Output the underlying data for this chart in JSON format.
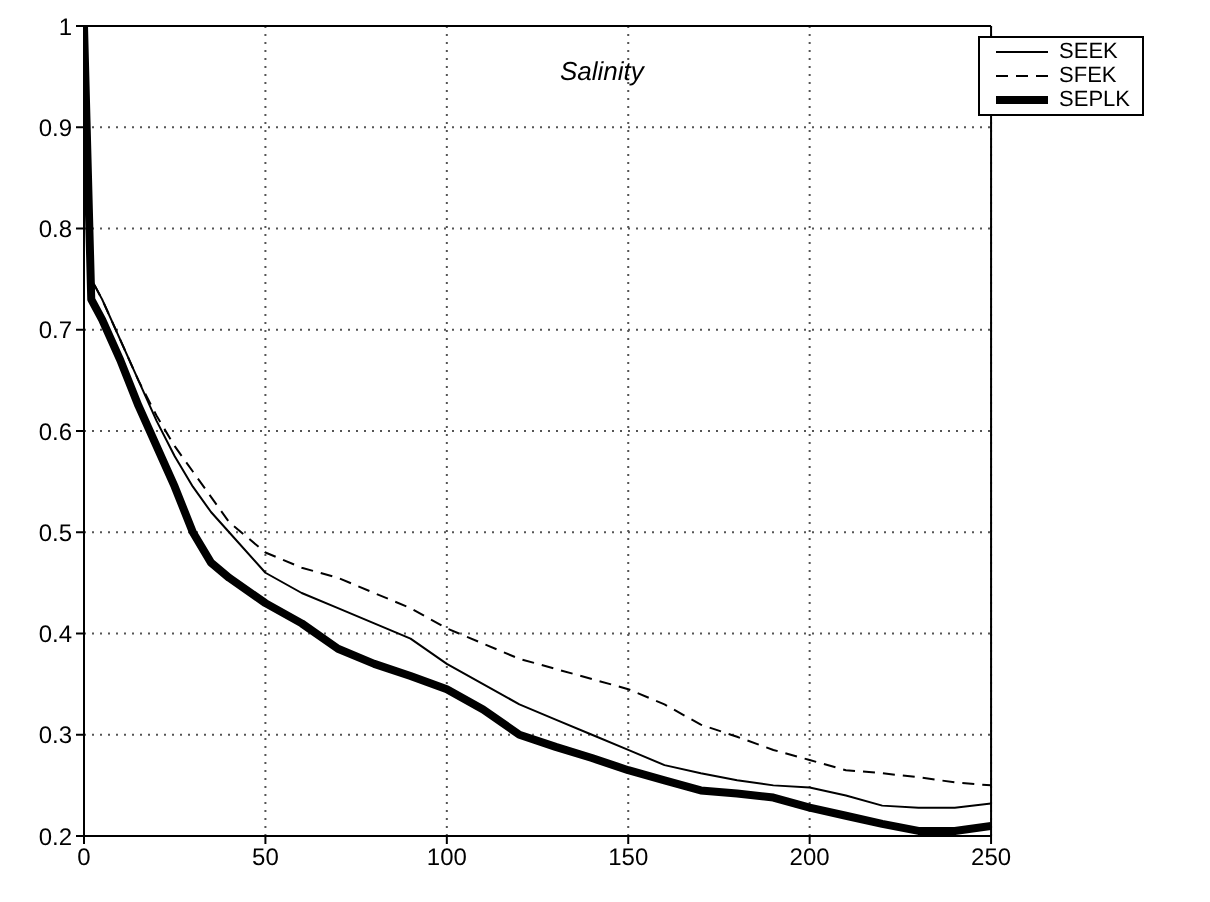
{
  "chart_data": {
    "type": "line",
    "title": "Salinity",
    "x": [
      0,
      2,
      5,
      10,
      15,
      20,
      25,
      30,
      35,
      40,
      50,
      60,
      70,
      80,
      90,
      100,
      110,
      120,
      130,
      140,
      150,
      160,
      170,
      180,
      190,
      200,
      210,
      220,
      230,
      240,
      250
    ],
    "series": [
      {
        "name": "SEEK",
        "color": "#000000",
        "line_style": "solid",
        "values": [
          1.0,
          0.75,
          0.73,
          0.69,
          0.65,
          0.61,
          0.575,
          0.545,
          0.52,
          0.5,
          0.46,
          0.44,
          0.425,
          0.41,
          0.395,
          0.37,
          0.35,
          0.33,
          0.315,
          0.3,
          0.285,
          0.27,
          0.262,
          0.255,
          0.25,
          0.248,
          0.24,
          0.23,
          0.228,
          0.228,
          0.232
        ]
      },
      {
        "name": "SFEK",
        "color": "#000000",
        "line_style": "dashed",
        "values": [
          1.0,
          0.75,
          0.73,
          0.69,
          0.65,
          0.615,
          0.585,
          0.56,
          0.535,
          0.51,
          0.48,
          0.465,
          0.455,
          0.44,
          0.425,
          0.405,
          0.39,
          0.375,
          0.365,
          0.355,
          0.345,
          0.33,
          0.31,
          0.298,
          0.285,
          0.275,
          0.265,
          0.262,
          0.258,
          0.253,
          0.25
        ]
      },
      {
        "name": "SEPLK",
        "color": "#000000",
        "line_style": "solid",
        "values": [
          1.0,
          0.73,
          0.71,
          0.67,
          0.625,
          0.585,
          0.545,
          0.5,
          0.47,
          0.455,
          0.43,
          0.41,
          0.385,
          0.37,
          0.358,
          0.345,
          0.325,
          0.3,
          0.288,
          0.277,
          0.265,
          0.255,
          0.245,
          0.242,
          0.238,
          0.228,
          0.22,
          0.212,
          0.205,
          0.205,
          0.21
        ]
      }
    ],
    "xlim": [
      0,
      250
    ],
    "xticks": [
      0,
      50,
      100,
      150,
      200,
      250
    ],
    "ylim": [
      0.2,
      1
    ],
    "yticks": [
      0.2,
      0.3,
      0.4,
      0.5,
      0.6,
      0.7,
      0.8,
      0.9,
      1
    ],
    "grid": true,
    "legend": "top right",
    "marker": "none"
  }
}
